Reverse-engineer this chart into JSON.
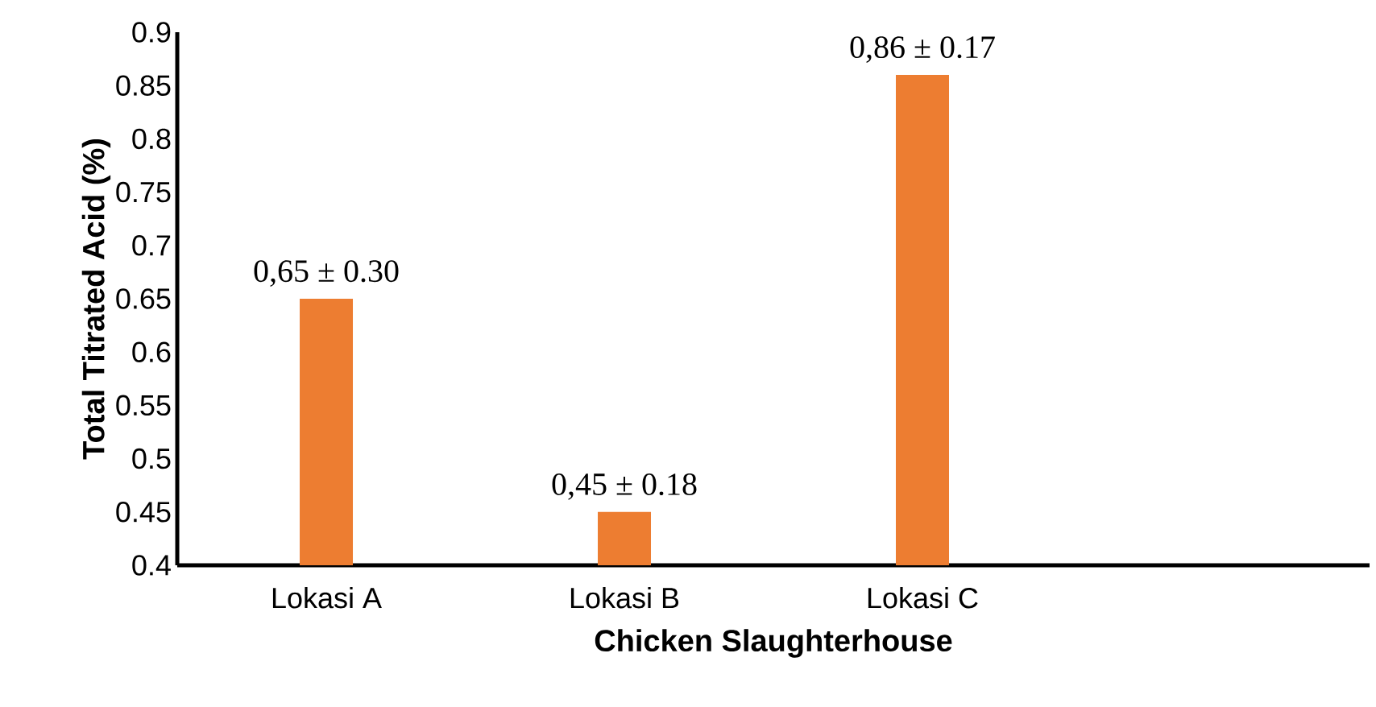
{
  "chart_data": {
    "type": "bar",
    "xlabel": "Chicken Slaughterhouse",
    "ylabel": "Total Titrated Acid (%)",
    "categories": [
      "Lokasi A",
      "Lokasi B",
      "Lokasi C",
      null
    ],
    "values": [
      0.65,
      0.45,
      0.86,
      null
    ],
    "value_labels": [
      "0,65 ± 0.30",
      "0,45 ± 0.18",
      "0,86 ± 0.17",
      null
    ],
    "color": "#ed7d31",
    "ylim": [
      0.4,
      0.9
    ],
    "yticks": [
      0.4,
      0.45,
      0.5,
      0.55,
      0.6,
      0.65,
      0.7,
      0.75,
      0.8,
      0.85,
      0.9
    ]
  }
}
